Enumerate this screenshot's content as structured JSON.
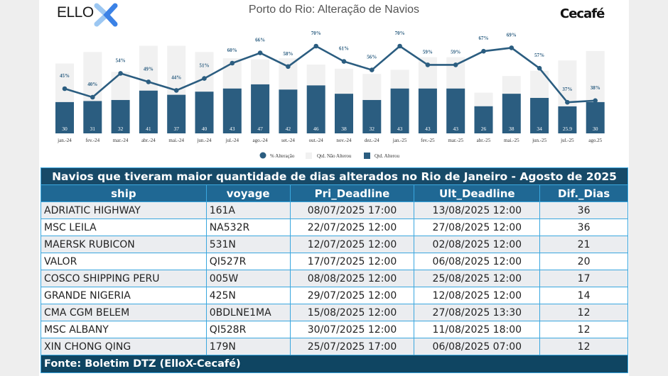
{
  "header": {
    "title": "Porto do Rio: Alteração de Navios",
    "logo_left": "ELLO",
    "logo_right": "Cecafé"
  },
  "chart_data": {
    "type": "bar",
    "title": "Porto do Rio: Alteração de Navios",
    "categories": [
      "jan.-24",
      "fev.-24",
      "mar.-24",
      "abr.-24",
      "mai.-24",
      "jun.-24",
      "jul.-24",
      "ago.-24",
      "set.-24",
      "out.-24",
      "nov.-24",
      "dez.-24",
      "jan.-25",
      "fev.-25",
      "mar.-25",
      "abr.-25",
      "mai.-25",
      "jun.-25",
      "jul.-25",
      "ago.25"
    ],
    "series": [
      {
        "name": "Qtd. Alterou",
        "type": "bar",
        "values": [
          30,
          31,
          32,
          41,
          37,
          40,
          43,
          47,
          42,
          46,
          38,
          32,
          43,
          43,
          43,
          26,
          38,
          34,
          25.9,
          30
        ],
        "color": "#2b5d80"
      },
      {
        "name": "Qtd. Não Alterou",
        "type": "bar",
        "stacked": true,
        "values": [
          37,
          47,
          27,
          43,
          47,
          38,
          29,
          24,
          30,
          20,
          24,
          25,
          18,
          30,
          30,
          13,
          17,
          26,
          44,
          49
        ],
        "color": "#f1f1f1"
      },
      {
        "name": "% Alteração",
        "type": "line",
        "values": [
          45,
          40,
          54,
          49,
          44,
          51,
          60,
          66,
          58,
          70,
          61,
          56,
          70,
          59,
          59,
          67,
          69,
          57,
          37,
          38
        ],
        "color": "#2b5d80"
      }
    ],
    "legend": [
      "% Alteração",
      "Qtd. Não Alterou",
      "Qtd. Alterou"
    ],
    "legend_position": "bottom",
    "grid": false
  },
  "table": {
    "title": "Navios que tiveram maior quantidade de dias alterados no Rio de Janeiro - Agosto de 2025",
    "columns": [
      "ship",
      "voyage",
      "Pri_Deadline",
      "Ult_Deadline",
      "Dif._Dias"
    ],
    "rows": [
      [
        "ADRIATIC HIGHWAY",
        "161A",
        "08/07/2025 17:00",
        "13/08/2025 12:00",
        "36"
      ],
      [
        "MSC LEILA",
        "NA532R",
        "22/07/2025 12:00",
        "27/08/2025 12:00",
        "36"
      ],
      [
        "MAERSK RUBICON",
        "531N",
        "12/07/2025 12:00",
        "02/08/2025 12:00",
        "21"
      ],
      [
        "VALOR",
        "QI527R",
        "17/07/2025 12:00",
        "06/08/2025 12:00",
        "20"
      ],
      [
        "COSCO SHIPPING PERU",
        "005W",
        "08/08/2025 12:00",
        "25/08/2025 12:00",
        "17"
      ],
      [
        "GRANDE NIGERIA",
        "425N",
        "29/07/2025 12:00",
        "12/08/2025 12:00",
        "14"
      ],
      [
        "CMA CGM BELEM",
        "0BDLNE1MA",
        "15/08/2025 12:00",
        "27/08/2025 13:30",
        "12"
      ],
      [
        "MSC ALBANY",
        "QI528R",
        "30/07/2025 12:00",
        "11/08/2025 18:00",
        "12"
      ],
      [
        "XIN CHONG QING",
        "179N",
        "25/07/2025 17:00",
        "06/08/2025 07:00",
        "12"
      ]
    ],
    "footer": "Fonte: Boletim DTZ (ElloX-Cecafé)"
  }
}
